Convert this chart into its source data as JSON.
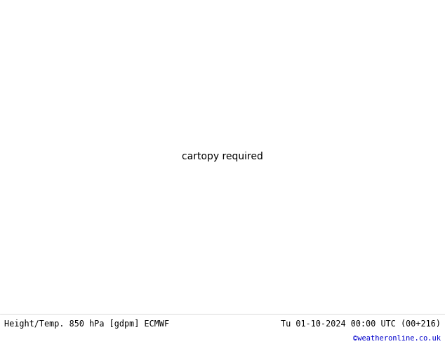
{
  "title_left": "Height/Temp. 850 hPa [gdpm] ECMWF",
  "title_right": "Tu 01-10-2024 00:00 UTC (00+216)",
  "copyright": "©weatheronline.co.uk",
  "land_green": "#d4edaa",
  "land_gray": "#aaaaaa",
  "sea_color": "#e8e8e8",
  "border_color": "#888888",
  "black_color": "#000000",
  "cyan_color": "#00b0b0",
  "green_color": "#88cc00",
  "orange_color": "#ff8800",
  "red_color": "#dd0000",
  "magenta_color": "#cc00cc",
  "figsize": [
    6.34,
    4.9
  ],
  "dpi": 100,
  "extent": [
    -30,
    42,
    27,
    72
  ]
}
